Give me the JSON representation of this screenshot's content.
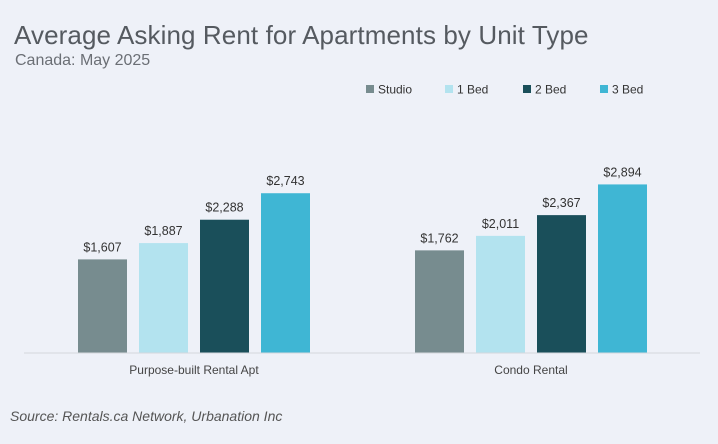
{
  "chart_data": {
    "type": "bar",
    "title": "Average Asking Rent for Apartments by Unit Type",
    "subtitle": "Canada: May 2025",
    "categories": [
      "Purpose-built Rental Apt",
      "Condo Rental"
    ],
    "series": [
      {
        "name": "Studio",
        "values": [
          1607,
          1762
        ],
        "labels": [
          "$1,607",
          "$1,762"
        ],
        "color": "#778c8f"
      },
      {
        "name": "1 Bed",
        "values": [
          1887,
          2011
        ],
        "labels": [
          "$1,887",
          "$2,011"
        ],
        "color": "#b3e3ef"
      },
      {
        "name": "2 Bed",
        "values": [
          2288,
          2367
        ],
        "labels": [
          "$2,288",
          "$2,367"
        ],
        "color": "#1a4f5a"
      },
      {
        "name": "3 Bed",
        "values": [
          2743,
          2894
        ],
        "labels": [
          "$2,743",
          "$2,894"
        ],
        "color": "#3fb6d4"
      }
    ],
    "ylim": [
      0,
      3600
    ],
    "grid": false,
    "legend": "top-right",
    "source": "Source: Rentals.ca Network, Urbanation Inc"
  }
}
